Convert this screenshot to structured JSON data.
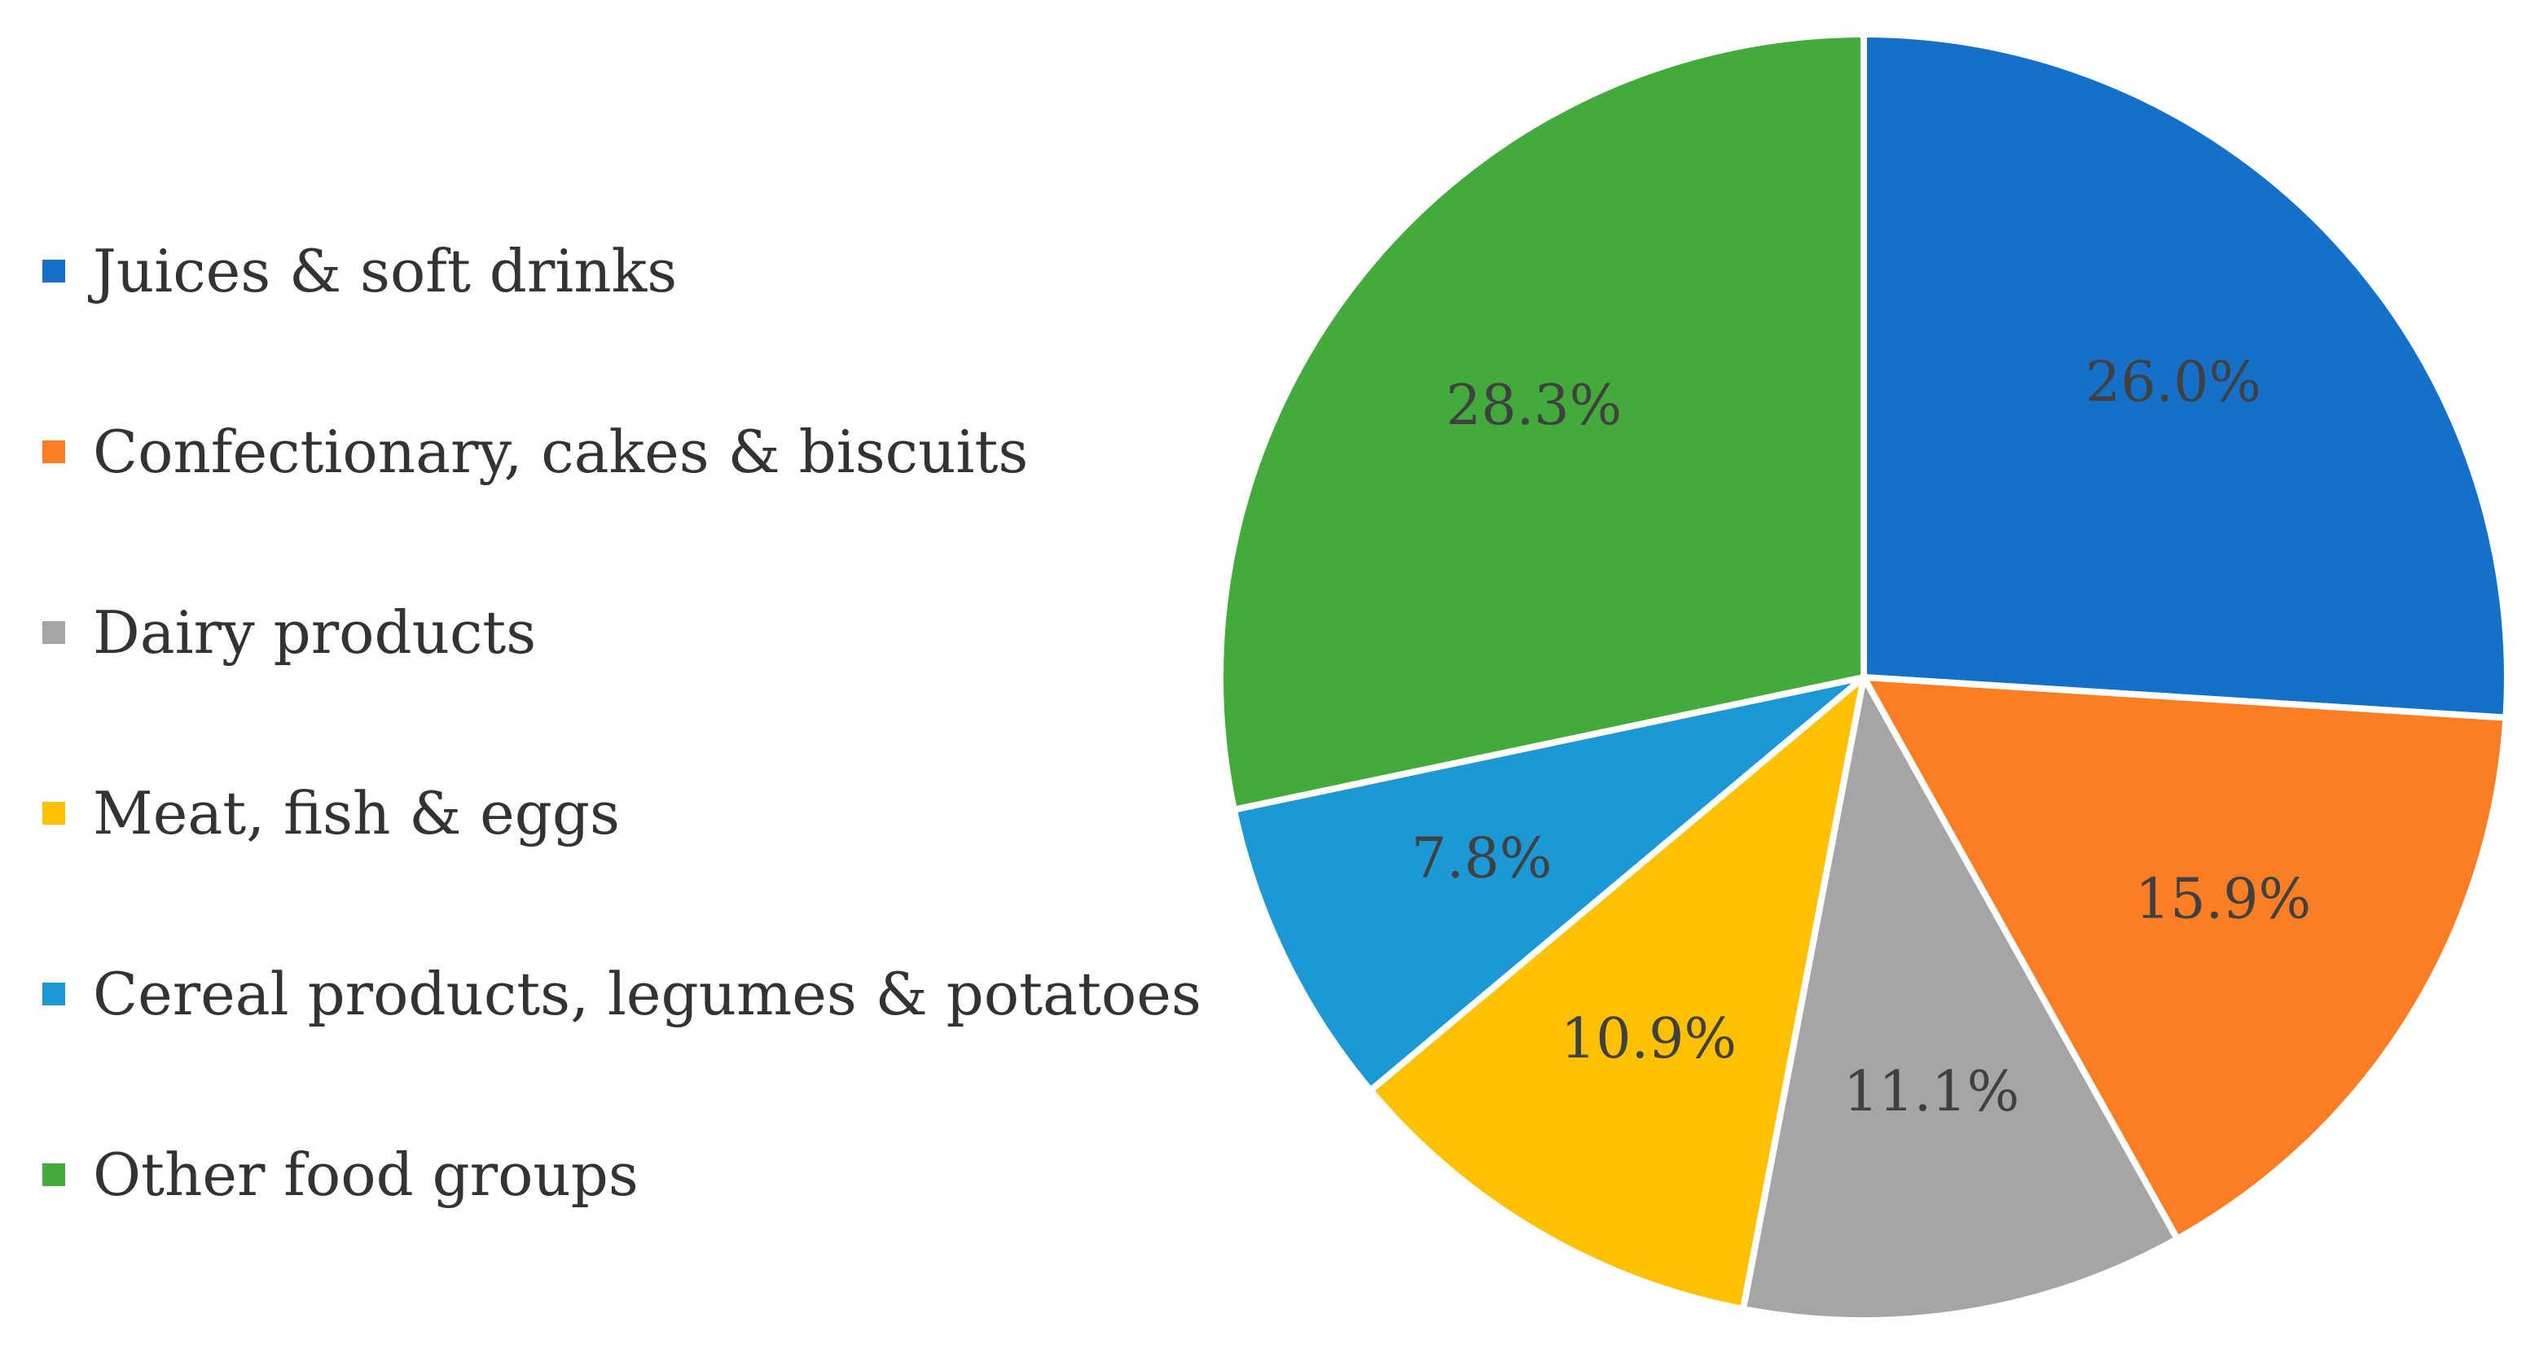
{
  "chart_data": {
    "type": "pie",
    "title": "",
    "legend_position": "left",
    "series": [
      {
        "name": "Juices & soft drinks",
        "value": 26.0,
        "label": "26.0%",
        "color": "#1570C8"
      },
      {
        "name": "Confectionary, cakes & biscuits",
        "value": 15.9,
        "label": "15.9%",
        "color": "#FB7E25"
      },
      {
        "name": "Dairy products",
        "value": 11.1,
        "label": "11.1%",
        "color": "#A5A5A5"
      },
      {
        "name": "Meat, fish & eggs",
        "value": 10.9,
        "label": "10.9%",
        "color": "#FFC000"
      },
      {
        "name": "Cereal products, legumes & potatoes",
        "value": 7.8,
        "label": "7.8%",
        "color": "#1B98D5"
      },
      {
        "name": "Other food groups",
        "value": 28.3,
        "label": "28.3%",
        "color": "#43AB3B"
      }
    ]
  }
}
